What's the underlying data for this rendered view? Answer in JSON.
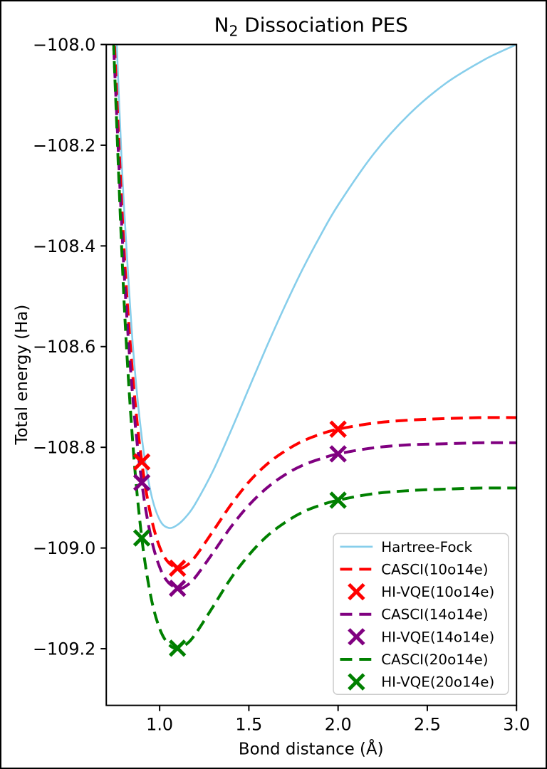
{
  "figure": {
    "background": "#ffffff",
    "frame_border_color": "#000000"
  },
  "chart_data": {
    "type": "line",
    "title": "N2 Dissociation PES",
    "title_parts": [
      "N",
      "2",
      " Dissociation PES"
    ],
    "xlabel": "Bond distance (Å)",
    "ylabel": "Total energy (Ha)",
    "xlim": [
      0.7,
      3.0
    ],
    "ylim": [
      -109.31,
      -108.0
    ],
    "grid": false,
    "xtick_values": [
      1.0,
      1.5,
      2.0,
      2.5,
      3.0
    ],
    "xtick_labels": [
      "1.0",
      "1.5",
      "2.0",
      "2.5",
      "3.0"
    ],
    "ytick_values": [
      -108.0,
      -108.2,
      -108.4,
      -108.6,
      -108.8,
      -109.0,
      -109.2
    ],
    "ytick_labels": [
      "−108.0",
      "−108.2",
      "−108.4",
      "−108.6",
      "−108.8",
      "−109.0",
      "−109.2"
    ],
    "legend": {
      "position": "lower right",
      "border_color": "#cccccc",
      "background": "#ffffff"
    },
    "series": [
      {
        "id": "hartree_fock",
        "name": "Hartree-Fock",
        "kind": "line",
        "style": "solid",
        "color": "#87ceeb",
        "width": 2.6,
        "x": [
          0.75,
          0.76,
          0.78,
          0.8,
          0.85,
          0.9,
          0.95,
          1.0,
          1.05,
          1.1,
          1.15,
          1.2,
          1.3,
          1.4,
          1.5,
          1.6,
          1.7,
          1.8,
          1.9,
          2.0,
          2.2,
          2.4,
          2.6,
          2.8,
          2.9,
          3.0
        ],
        "y": [
          -107.911,
          -108.004,
          -108.173,
          -108.319,
          -108.598,
          -108.78,
          -108.889,
          -108.944,
          -108.96,
          -108.954,
          -108.937,
          -108.912,
          -108.846,
          -108.767,
          -108.683,
          -108.6,
          -108.521,
          -108.447,
          -108.38,
          -108.319,
          -108.217,
          -108.138,
          -108.078,
          -108.034,
          -108.016,
          -108.0
        ]
      },
      {
        "id": "casci_10o14e",
        "name": "CASCI(10o14e)",
        "kind": "line",
        "style": "dashed",
        "color": "#ff0000",
        "width": 4,
        "x": [
          0.74,
          0.75,
          0.8,
          0.85,
          0.9,
          0.95,
          1.0,
          1.05,
          1.11,
          1.15,
          1.2,
          1.3,
          1.4,
          1.5,
          1.6,
          1.7,
          1.8,
          1.9,
          2.0,
          2.2,
          2.4,
          2.6,
          2.8,
          3.0
        ],
        "y": [
          -107.93,
          -108.024,
          -108.403,
          -108.66,
          -108.829,
          -108.935,
          -108.998,
          -109.029,
          -109.04,
          -109.035,
          -109.017,
          -108.966,
          -108.914,
          -108.869,
          -108.834,
          -108.808,
          -108.788,
          -108.774,
          -108.764,
          -108.752,
          -108.746,
          -108.743,
          -108.741,
          -108.741
        ]
      },
      {
        "id": "hivqe_10o14e",
        "name": "HI-VQE(10o14e)",
        "kind": "markers",
        "marker": "x",
        "color": "#ff0000",
        "size": 10.5,
        "stroke": 5,
        "x": [
          0.9,
          1.1,
          2.0
        ],
        "y": [
          -108.829,
          -109.04,
          -108.764
        ]
      },
      {
        "id": "casci_14o14e",
        "name": "CASCI(14o14e)",
        "kind": "line",
        "style": "dashed",
        "color": "#800080",
        "width": 4,
        "x": [
          0.74,
          0.75,
          0.8,
          0.85,
          0.9,
          0.95,
          1.0,
          1.05,
          1.11,
          1.15,
          1.2,
          1.3,
          1.4,
          1.5,
          1.6,
          1.7,
          1.8,
          1.9,
          2.0,
          2.2,
          2.4,
          2.6,
          2.8,
          3.0
        ],
        "y": [
          -107.97,
          -108.064,
          -108.445,
          -108.702,
          -108.87,
          -108.976,
          -109.038,
          -109.069,
          -109.08,
          -109.075,
          -109.058,
          -109.009,
          -108.958,
          -108.915,
          -108.881,
          -108.855,
          -108.836,
          -108.823,
          -108.813,
          -108.801,
          -108.795,
          -108.793,
          -108.791,
          -108.791
        ]
      },
      {
        "id": "hivqe_14o14e",
        "name": "HI-VQE(14o14e)",
        "kind": "markers",
        "marker": "x",
        "color": "#800080",
        "size": 10.5,
        "stroke": 5,
        "x": [
          0.9,
          1.1,
          2.0
        ],
        "y": [
          -108.87,
          -109.08,
          -108.813
        ]
      },
      {
        "id": "casci_20o14e",
        "name": "CASCI(20o14e)",
        "kind": "line",
        "style": "dashed",
        "color": "#008000",
        "width": 4,
        "x": [
          0.74,
          0.75,
          0.8,
          0.85,
          0.9,
          0.95,
          1.0,
          1.05,
          1.1,
          1.15,
          1.2,
          1.3,
          1.4,
          1.5,
          1.6,
          1.7,
          1.8,
          1.9,
          2.0,
          2.2,
          2.4,
          2.6,
          2.8,
          3.0
        ],
        "y": [
          -107.96,
          -108.072,
          -108.504,
          -108.793,
          -108.98,
          -109.095,
          -109.16,
          -109.191,
          -109.2,
          -109.191,
          -109.171,
          -109.116,
          -109.06,
          -109.014,
          -108.977,
          -108.95,
          -108.929,
          -108.915,
          -108.905,
          -108.892,
          -108.886,
          -108.883,
          -108.881,
          -108.881
        ]
      },
      {
        "id": "hivqe_20o14e",
        "name": "HI-VQE(20o14e)",
        "kind": "markers",
        "marker": "x",
        "color": "#008000",
        "size": 10.5,
        "stroke": 5,
        "x": [
          0.9,
          1.1,
          2.0
        ],
        "y": [
          -108.98,
          -109.199,
          -108.905
        ]
      }
    ]
  }
}
